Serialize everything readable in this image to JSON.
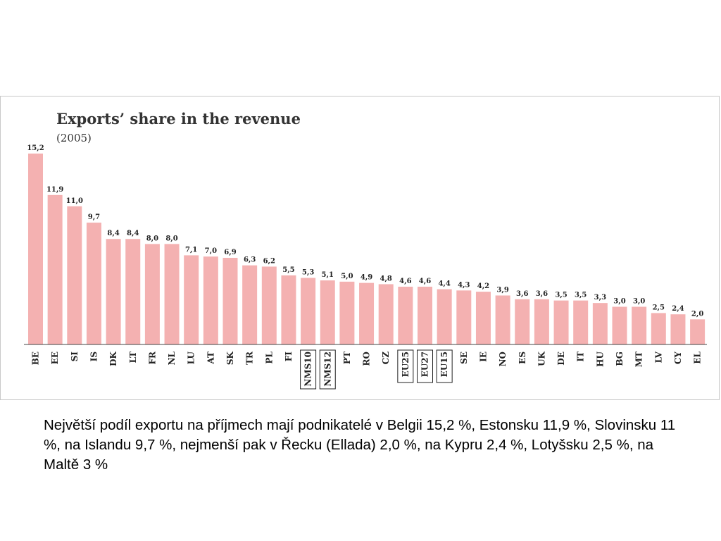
{
  "chart_data": {
    "type": "bar",
    "title": "Exports’ share in the revenue",
    "subtitle": "(2005)",
    "xlabel": "",
    "ylabel": "",
    "ylim": [
      0,
      16
    ],
    "grid": false,
    "bar_color": "#f4b1b1",
    "categories": [
      "BE",
      "EE",
      "SI",
      "IS",
      "DK",
      "LT",
      "FR",
      "NL",
      "LU",
      "AT",
      "SK",
      "TR",
      "PL",
      "FI",
      "NMS10",
      "NMS12",
      "PT",
      "RO",
      "CZ",
      "EU25",
      "EU27",
      "EU15",
      "SE",
      "IE",
      "NO",
      "ES",
      "UK",
      "DE",
      "IT",
      "HU",
      "BG",
      "MT",
      "LV",
      "CY",
      "EL"
    ],
    "values": [
      15.2,
      11.9,
      11.0,
      9.7,
      8.4,
      8.4,
      8.0,
      8.0,
      7.1,
      7.0,
      6.9,
      6.3,
      6.2,
      5.5,
      5.3,
      5.1,
      5.0,
      4.9,
      4.8,
      4.6,
      4.6,
      4.4,
      4.3,
      4.2,
      3.9,
      3.6,
      3.6,
      3.5,
      3.5,
      3.3,
      3.0,
      3.0,
      2.5,
      2.4,
      2.0
    ],
    "value_labels": [
      "15,2",
      "11,9",
      "11,0",
      "9,7",
      "8,4",
      "8,4",
      "8,0",
      "8,0",
      "7,1",
      "7,0",
      "6,9",
      "6,3",
      "6,2",
      "5,5",
      "5,3",
      "5,1",
      "5,0",
      "4,9",
      "4,8",
      "4,6",
      "4,6",
      "4,4",
      "4,3",
      "4,2",
      "3,9",
      "3,6",
      "3,6",
      "3,5",
      "3,5",
      "3,3",
      "3,0",
      "3,0",
      "2,5",
      "2,4",
      "2,0"
    ],
    "boxed_categories": [
      "NMS10",
      "NMS12",
      "EU25",
      "EU27",
      "EU15"
    ]
  },
  "caption": {
    "text": "Největší podíl exportu na příjmech mají podnikatelé v Belgii 15,2 %, Estonsku 11,9 %, Slovinsku 11 %, na Islandu 9,7 %, nejmenší pak v Řecku (Ellada) 2,0 %, na Kypru 2,4 %, Lotyšsku 2,5 %, na Maltě 3 %"
  }
}
